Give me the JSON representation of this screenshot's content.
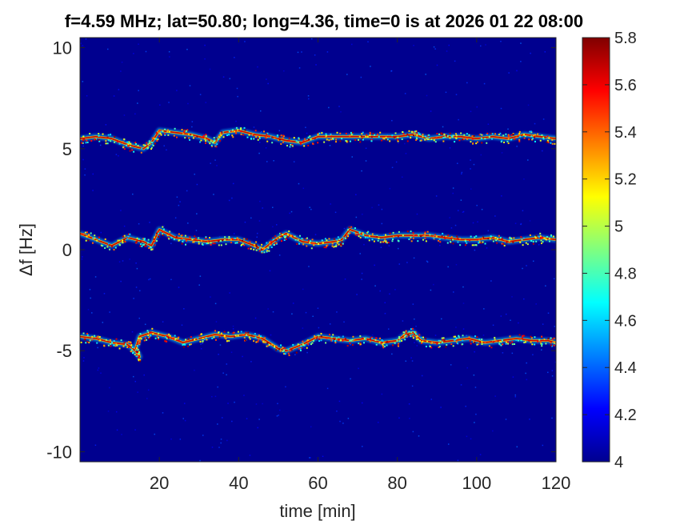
{
  "chart_data": {
    "type": "heatmap",
    "title": "f=4.59 MHz;  lat=50.80; long=4.36, time=0 is at 2026 01 22 08:00",
    "xlabel": "time [min]",
    "ylabel": "Δf [Hz]",
    "xlim": [
      0,
      120
    ],
    "ylim": [
      -10.5,
      10.5
    ],
    "xticks": [
      "20",
      "40",
      "60",
      "80",
      "100",
      "120"
    ],
    "xtick_values": [
      20,
      40,
      60,
      80,
      100,
      120
    ],
    "yticks": [
      "10",
      "5",
      "0",
      "-5",
      "-10"
    ],
    "ytick_values": [
      10,
      5,
      0,
      -5,
      -10
    ],
    "colorbar": {
      "colormap": "jet",
      "range": [
        4,
        5.8
      ],
      "ticks": [
        "5.8",
        "5.6",
        "5.4",
        "5.2",
        "5",
        "4.8",
        "4.6",
        "4.4",
        "4.2",
        "4"
      ],
      "tick_values": [
        5.8,
        5.6,
        5.4,
        5.2,
        5.0,
        4.8,
        4.6,
        4.4,
        4.2,
        4.0
      ]
    },
    "background_value": 4.0,
    "traces": [
      {
        "label": "upper",
        "points": [
          [
            0,
            5.5
          ],
          [
            4,
            5.6
          ],
          [
            8,
            5.5
          ],
          [
            12,
            5.2
          ],
          [
            16,
            5.0
          ],
          [
            18,
            5.3
          ],
          [
            20,
            5.9
          ],
          [
            24,
            5.8
          ],
          [
            28,
            5.7
          ],
          [
            32,
            5.5
          ],
          [
            34,
            5.3
          ],
          [
            36,
            5.8
          ],
          [
            40,
            5.9
          ],
          [
            44,
            5.7
          ],
          [
            48,
            5.6
          ],
          [
            52,
            5.4
          ],
          [
            56,
            5.3
          ],
          [
            60,
            5.6
          ],
          [
            64,
            5.6
          ],
          [
            68,
            5.6
          ],
          [
            72,
            5.6
          ],
          [
            76,
            5.6
          ],
          [
            80,
            5.6
          ],
          [
            84,
            5.7
          ],
          [
            86,
            5.6
          ],
          [
            88,
            5.5
          ],
          [
            92,
            5.6
          ],
          [
            96,
            5.6
          ],
          [
            100,
            5.5
          ],
          [
            104,
            5.6
          ],
          [
            108,
            5.5
          ],
          [
            112,
            5.7
          ],
          [
            116,
            5.6
          ],
          [
            120,
            5.5
          ]
        ]
      },
      {
        "label": "middle",
        "points": [
          [
            0,
            0.8
          ],
          [
            4,
            0.5
          ],
          [
            8,
            0.2
          ],
          [
            12,
            0.6
          ],
          [
            16,
            0.4
          ],
          [
            18,
            0.2
          ],
          [
            20,
            1.0
          ],
          [
            24,
            0.6
          ],
          [
            28,
            0.5
          ],
          [
            32,
            0.4
          ],
          [
            36,
            0.5
          ],
          [
            40,
            0.5
          ],
          [
            44,
            0.2
          ],
          [
            46,
            0.0
          ],
          [
            48,
            0.3
          ],
          [
            50,
            0.6
          ],
          [
            52,
            0.8
          ],
          [
            56,
            0.4
          ],
          [
            60,
            0.3
          ],
          [
            64,
            0.4
          ],
          [
            66,
            0.5
          ],
          [
            68,
            1.0
          ],
          [
            72,
            0.7
          ],
          [
            76,
            0.6
          ],
          [
            80,
            0.7
          ],
          [
            84,
            0.7
          ],
          [
            88,
            0.7
          ],
          [
            92,
            0.6
          ],
          [
            96,
            0.5
          ],
          [
            100,
            0.5
          ],
          [
            104,
            0.6
          ],
          [
            108,
            0.4
          ],
          [
            112,
            0.5
          ],
          [
            116,
            0.6
          ],
          [
            120,
            0.5
          ]
        ]
      },
      {
        "label": "lower",
        "points": [
          [
            0,
            -4.3
          ],
          [
            4,
            -4.4
          ],
          [
            8,
            -4.6
          ],
          [
            12,
            -4.7
          ],
          [
            14,
            -5.0
          ],
          [
            15,
            -5.3
          ],
          [
            14,
            -4.9
          ],
          [
            15,
            -4.3
          ],
          [
            18,
            -4.1
          ],
          [
            22,
            -4.3
          ],
          [
            26,
            -4.6
          ],
          [
            30,
            -4.4
          ],
          [
            34,
            -4.2
          ],
          [
            38,
            -4.3
          ],
          [
            42,
            -4.2
          ],
          [
            46,
            -4.4
          ],
          [
            50,
            -4.9
          ],
          [
            52,
            -5.0
          ],
          [
            56,
            -4.7
          ],
          [
            60,
            -4.3
          ],
          [
            64,
            -4.4
          ],
          [
            68,
            -4.5
          ],
          [
            72,
            -4.4
          ],
          [
            76,
            -4.6
          ],
          [
            80,
            -4.5
          ],
          [
            82,
            -4.2
          ],
          [
            84,
            -4.1
          ],
          [
            86,
            -4.5
          ],
          [
            90,
            -4.6
          ],
          [
            94,
            -4.5
          ],
          [
            98,
            -4.4
          ],
          [
            102,
            -4.6
          ],
          [
            106,
            -4.5
          ],
          [
            110,
            -4.4
          ],
          [
            114,
            -4.5
          ],
          [
            118,
            -4.5
          ],
          [
            120,
            -4.6
          ]
        ]
      }
    ]
  }
}
